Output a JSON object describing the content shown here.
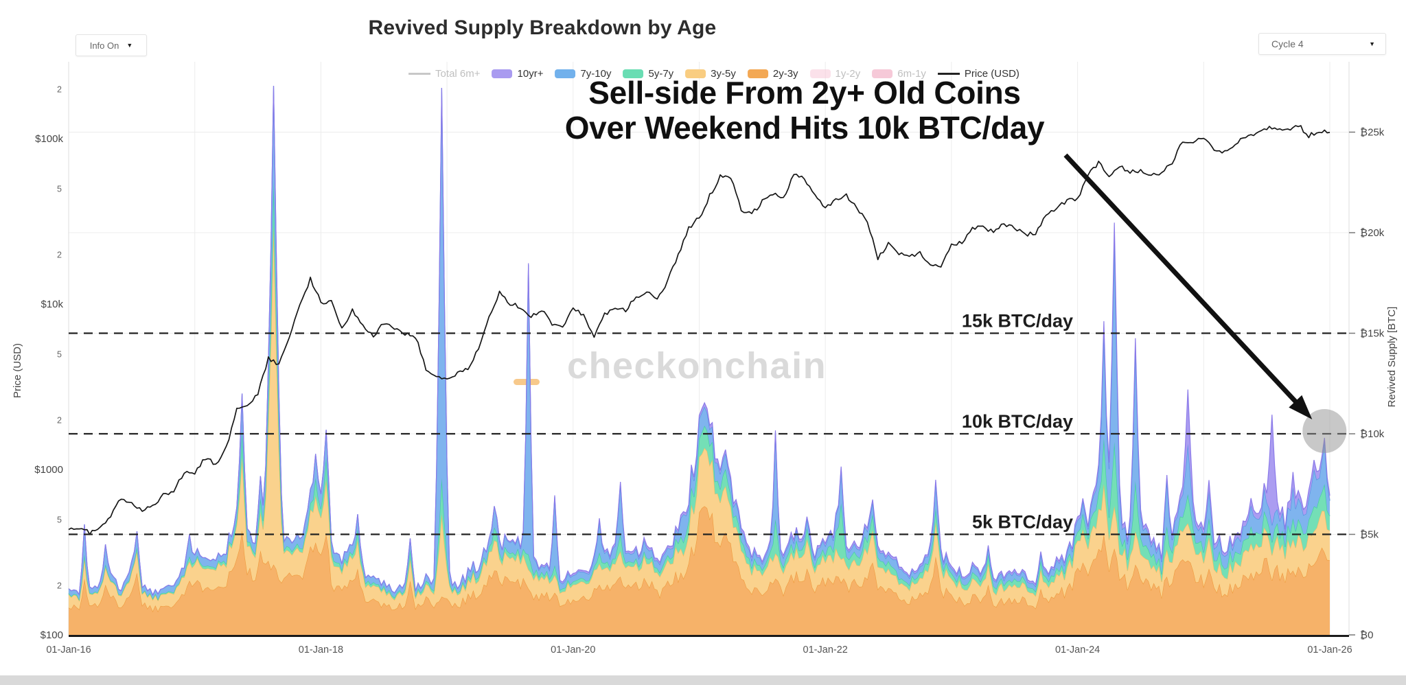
{
  "header": {
    "title": "Revived Supply Breakdown by Age"
  },
  "controls": {
    "info_dropdown": "Info On",
    "cycle_dropdown": "Cycle 4",
    "caret": "▼"
  },
  "watermark": {
    "text": "checkonchain",
    "text_color": "#dadada",
    "accent_color": "#f7c98b"
  },
  "annotation": {
    "line1": "Sell-side From 2y+ Old Coins",
    "line2": "Over Weekend Hits 10k BTC/day"
  },
  "legend": [
    {
      "label": "Total 6m+",
      "type": "line",
      "color": "#9a9a9a",
      "dimmed": true
    },
    {
      "label": "10yr+",
      "type": "swatch",
      "color": "#a99bf0",
      "dimmed": false
    },
    {
      "label": "7y-10y",
      "type": "swatch",
      "color": "#72b1ec",
      "dimmed": false
    },
    {
      "label": "5y-7y",
      "type": "swatch",
      "color": "#69ddb3",
      "dimmed": false
    },
    {
      "label": "3y-5y",
      "type": "swatch",
      "color": "#f9cd81",
      "dimmed": false
    },
    {
      "label": "2y-3y",
      "type": "swatch",
      "color": "#f3a854",
      "dimmed": false
    },
    {
      "label": "1y-2y",
      "type": "swatch",
      "color": "#f8c8d8",
      "dimmed": true
    },
    {
      "label": "6m-1y",
      "type": "swatch",
      "color": "#ef9db8",
      "dimmed": true
    },
    {
      "label": "Price (USD)",
      "type": "line",
      "color": "#222222",
      "dimmed": false
    }
  ],
  "chart_data": {
    "type": "area",
    "title": "Revived Supply Breakdown by Age",
    "stack_order": "bottom-to-top",
    "months": 121,
    "x_start": "01-Jan-2016",
    "x_end": "01-Jan-2026",
    "x_ticks": [
      {
        "label": "01-Jan-16",
        "m": 0
      },
      {
        "label": "01-Jan-18",
        "m": 24
      },
      {
        "label": "01-Jan-20",
        "m": 48
      },
      {
        "label": "01-Jan-22",
        "m": 72
      },
      {
        "label": "01-Jan-24",
        "m": 96
      },
      {
        "label": "01-Jan-26",
        "m": 120
      }
    ],
    "y_left": {
      "title": "Price (USD)",
      "scale": "log",
      "ticks": [
        {
          "label": "$100",
          "v": 100
        },
        {
          "label": "2",
          "v": 200,
          "minor": true
        },
        {
          "label": "5",
          "v": 500,
          "minor": true
        },
        {
          "label": "$1000",
          "v": 1000
        },
        {
          "label": "2",
          "v": 2000,
          "minor": true
        },
        {
          "label": "5",
          "v": 5000,
          "minor": true
        },
        {
          "label": "$10k",
          "v": 10000
        },
        {
          "label": "2",
          "v": 20000,
          "minor": true
        },
        {
          "label": "5",
          "v": 50000,
          "minor": true
        },
        {
          "label": "$100k",
          "v": 100000
        },
        {
          "label": "2",
          "v": 200000,
          "minor": true
        }
      ]
    },
    "y_right": {
      "title": "Revived Supply [BTC]",
      "scale": "linear",
      "ticks": [
        {
          "label": "₿0",
          "v": 0
        },
        {
          "label": "₿5k",
          "v": 5000
        },
        {
          "label": "₿10k",
          "v": 10000
        },
        {
          "label": "₿15k",
          "v": 15000
        },
        {
          "label": "₿20k",
          "v": 20000
        },
        {
          "label": "₿25k",
          "v": 25000
        }
      ]
    },
    "reference_lines": [
      {
        "label": "5k BTC/day",
        "value": 5000
      },
      {
        "label": "10k BTC/day",
        "value": 10000
      },
      {
        "label": "15k BTC/day",
        "value": 15000
      }
    ],
    "highlight": {
      "month_index": 119.5,
      "value": 10000,
      "description": "final weekend spike reaching 10k BTC/day"
    },
    "grid_color": "#ececec",
    "series": [
      {
        "name": "2y-3y",
        "fill": "#f6b269",
        "line": "#ee9a3d",
        "values": [
          1500,
          1250,
          1400,
          1600,
          1800,
          1500,
          2200,
          1600,
          1300,
          1450,
          1650,
          2100,
          2300,
          2600,
          2500,
          2700,
          3600,
          3100,
          2800,
          3400,
          2500,
          2700,
          3100,
          3900,
          4300,
          2700,
          2200,
          2700,
          2000,
          1700,
          1500,
          1300,
          1550,
          1300,
          1700,
          1500,
          1700,
          1500,
          1900,
          2100,
          2700,
          2900,
          2500,
          2700,
          2100,
          2000,
          1700,
          1500,
          1900,
          1700,
          2100,
          2300,
          2500,
          2100,
          2400,
          2600,
          2100,
          2400,
          2900,
          3600,
          5200,
          5400,
          4600,
          3700,
          3000,
          2400,
          2100,
          2700,
          2300,
          2800,
          2600,
          2300,
          2700,
          2900,
          2400,
          2600,
          3000,
          2600,
          2100,
          1800,
          1700,
          1900,
          2600,
          2200,
          1900,
          1600,
          1900,
          1700,
          1500,
          1700,
          1900,
          1600,
          1400,
          1700,
          2000,
          2300,
          2900,
          3100,
          3800,
          3300,
          2800,
          2500,
          2900,
          2300,
          2100,
          2600,
          3400,
          3000,
          2800,
          2400,
          2200,
          2500,
          2800,
          3000,
          3400,
          3100,
          2900,
          3200,
          3500,
          4300,
          3200
        ]
      },
      {
        "name": "3y-5y",
        "fill": "#fad28d",
        "line": "#f3bc61",
        "values": [
          600,
          480,
          550,
          640,
          740,
          600,
          880,
          640,
          520,
          580,
          660,
          850,
          950,
          1050,
          1000,
          1100,
          1500,
          1300,
          1150,
          1400,
          1050,
          1150,
          1300,
          1700,
          1950,
          1150,
          950,
          1150,
          850,
          720,
          630,
          550,
          650,
          550,
          720,
          630,
          720,
          630,
          800,
          900,
          1150,
          1250,
          1050,
          1150,
          900,
          850,
          720,
          630,
          800,
          720,
          900,
          1000,
          1050,
          900,
          1000,
          1100,
          900,
          1000,
          1250,
          1600,
          2400,
          2500,
          2100,
          1700,
          1350,
          1050,
          900,
          1150,
          1000,
          1200,
          1100,
          1000,
          1150,
          1250,
          1050,
          1100,
          1300,
          1100,
          900,
          780,
          720,
          800,
          1100,
          950,
          800,
          680,
          800,
          720,
          640,
          720,
          800,
          680,
          600,
          720,
          850,
          1000,
          1250,
          1350,
          1700,
          1450,
          1200,
          1100,
          1250,
          1000,
          900,
          1150,
          1500,
          1300,
          1200,
          1050,
          950,
          1100,
          1200,
          1300,
          1500,
          1350,
          1250,
          1400,
          1550,
          1950,
          1400
        ]
      },
      {
        "name": "5y-7y",
        "fill": "#74dfb6",
        "line": "#3ecf9e",
        "values": [
          60,
          50,
          55,
          65,
          75,
          60,
          90,
          65,
          55,
          60,
          70,
          90,
          120,
          140,
          130,
          150,
          220,
          190,
          170,
          220,
          160,
          180,
          210,
          300,
          360,
          220,
          180,
          220,
          160,
          140,
          120,
          110,
          130,
          110,
          140,
          130,
          150,
          130,
          170,
          190,
          240,
          280,
          240,
          260,
          200,
          190,
          160,
          140,
          190,
          160,
          200,
          230,
          260,
          210,
          240,
          260,
          210,
          240,
          420,
          650,
          900,
          800,
          650,
          520,
          420,
          330,
          280,
          350,
          310,
          380,
          350,
          310,
          360,
          700,
          420,
          450,
          520,
          450,
          340,
          300,
          260,
          300,
          420,
          340,
          280,
          240,
          300,
          260,
          240,
          260,
          300,
          250,
          220,
          260,
          300,
          340,
          420,
          500,
          850,
          720,
          600,
          540,
          650,
          500,
          450,
          580,
          750,
          650,
          600,
          520,
          470,
          540,
          620,
          670,
          760,
          690,
          640,
          710,
          800,
          950,
          700
        ]
      },
      {
        "name": "7y-10y",
        "fill": "#7fb4ee",
        "line": "#4e93e2",
        "values": [
          260,
          210,
          230,
          270,
          320,
          260,
          380,
          280,
          230,
          260,
          300,
          380,
          330,
          380,
          360,
          400,
          560,
          480,
          440,
          560,
          400,
          450,
          520,
          700,
          800,
          480,
          400,
          480,
          350,
          300,
          260,
          230,
          280,
          230,
          300,
          260,
          300,
          260,
          340,
          380,
          470,
          540,
          470,
          520,
          400,
          370,
          310,
          280,
          360,
          310,
          380,
          430,
          470,
          380,
          440,
          470,
          380,
          440,
          560,
          700,
          950,
          880,
          740,
          600,
          510,
          400,
          340,
          420,
          390,
          470,
          440,
          390,
          450,
          700,
          390,
          450,
          530,
          490,
          380,
          520,
          310,
          360,
          450,
          360,
          310,
          280,
          360,
          310,
          280,
          310,
          360,
          300,
          270,
          310,
          360,
          390,
          500,
          600,
          1000,
          880,
          720,
          650,
          810,
          630,
          570,
          720,
          950,
          810,
          750,
          650,
          580,
          670,
          790,
          850,
          960,
          870,
          810,
          900,
          1000,
          1200,
          870
        ]
      },
      {
        "name": "10yr+",
        "fill": "#ab9df1",
        "line": "#8b7ae9",
        "values": [
          0,
          0,
          0,
          0,
          0,
          0,
          0,
          0,
          0,
          0,
          0,
          0,
          0,
          0,
          0,
          0,
          0,
          0,
          0,
          0,
          0,
          0,
          0,
          0,
          0,
          0,
          0,
          0,
          0,
          0,
          0,
          0,
          0,
          0,
          0,
          0,
          0,
          0,
          0,
          0,
          0,
          0,
          50,
          70,
          70,
          80,
          80,
          90,
          90,
          90,
          100,
          100,
          110,
          100,
          110,
          120,
          110,
          120,
          140,
          160,
          190,
          200,
          180,
          150,
          140,
          120,
          110,
          130,
          120,
          140,
          130,
          120,
          130,
          120,
          110,
          120,
          140,
          130,
          110,
          100,
          90,
          100,
          130,
          110,
          100,
          90,
          110,
          100,
          90,
          100,
          110,
          100,
          90,
          100,
          110,
          120,
          140,
          160,
          260,
          220,
          200,
          180,
          210,
          180,
          160,
          200,
          280,
          240,
          230,
          200,
          180,
          200,
          240,
          260,
          310,
          280,
          260,
          300,
          340,
          400,
          290
        ]
      }
    ],
    "price": {
      "name": "Price (USD)",
      "color": "#161616",
      "values": [
        430,
        437,
        416,
        450,
        530,
        670,
        625,
        575,
        610,
        700,
        745,
        960,
        965,
        1180,
        1080,
        1350,
        2300,
        2450,
        2870,
        4700,
        4350,
        6450,
        9900,
        14200,
        10200,
        10500,
        7000,
        9200,
        7500,
        6400,
        7700,
        7000,
        6600,
        6400,
        4000,
        3700,
        3450,
        3850,
        4100,
        5300,
        8500,
        11800,
        10100,
        9600,
        8300,
        9200,
        7500,
        7200,
        9350,
        8600,
        6450,
        8650,
        9450,
        9140,
        11100,
        11700,
        10800,
        13800,
        19700,
        29000,
        33100,
        45200,
        58800,
        57800,
        37300,
        35000,
        41500,
        47100,
        43800,
        61300,
        57000,
        46200,
        38500,
        43200,
        45500,
        37700,
        31800,
        19000,
        23300,
        20000,
        19400,
        20500,
        17100,
        16500,
        23100,
        23500,
        28500,
        29200,
        27200,
        30500,
        29200,
        26000,
        27000,
        34700,
        37700,
        42300,
        42600,
        61200,
        71300,
        60600,
        67500,
        62700,
        64600,
        59000,
        63300,
        70200,
        96400,
        93400,
        102000,
        84400,
        82500,
        94200,
        104000,
        107000,
        116000,
        113000,
        114000,
        121000,
        104000,
        112000,
        109000
      ]
    },
    "spikes": [
      [
        1.5,
        0.55,
        2800,
        1000,
        200,
        1500,
        0
      ],
      [
        3.5,
        0.55,
        2500,
        850,
        150,
        1000,
        0
      ],
      [
        6.5,
        0.55,
        3100,
        1050,
        200,
        800,
        0
      ],
      [
        11.5,
        0.55,
        2700,
        950,
        250,
        1100,
        0
      ],
      [
        16.5,
        0.6,
        5200,
        3600,
        1300,
        1900,
        0
      ],
      [
        18.25,
        0.55,
        4200,
        1900,
        700,
        1100,
        0
      ],
      [
        19.5,
        1.0,
        3500,
        16800,
        2300,
        4700,
        0
      ],
      [
        23.5,
        0.6,
        4600,
        2300,
        900,
        1200,
        0
      ],
      [
        24.5,
        0.6,
        5000,
        2700,
        1100,
        1400,
        0
      ],
      [
        27.5,
        0.55,
        3300,
        1400,
        550,
        750,
        0
      ],
      [
        32.5,
        0.55,
        2700,
        1050,
        450,
        600,
        0
      ],
      [
        35.5,
        0.8,
        1900,
        4100,
        1800,
        19400,
        0
      ],
      [
        40.5,
        0.55,
        3200,
        1500,
        650,
        1050,
        0
      ],
      [
        43.75,
        0.55,
        2300,
        950,
        750,
        14400,
        80
      ],
      [
        46.25,
        0.55,
        2100,
        880,
        480,
        3400,
        80
      ],
      [
        50.5,
        0.55,
        2500,
        1050,
        550,
        1600,
        100
      ],
      [
        52.5,
        0.6,
        2900,
        1250,
        850,
        2500,
        110
      ],
      [
        58.5,
        0.55,
        2800,
        1150,
        650,
        1400,
        130
      ],
      [
        60.5,
        1.2,
        6400,
        2900,
        1100,
        950,
        190
      ],
      [
        62.5,
        1.0,
        5100,
        2300,
        850,
        780,
        180
      ],
      [
        67.25,
        0.5,
        2800,
        1250,
        1700,
        4300,
        120
      ],
      [
        70.25,
        0.55,
        3300,
        1450,
        550,
        450,
        130
      ],
      [
        73.5,
        0.5,
        2600,
        1150,
        2800,
        1700,
        120
      ],
      [
        76.5,
        0.55,
        3600,
        1600,
        800,
        600,
        130
      ],
      [
        82.5,
        0.6,
        3900,
        1700,
        700,
        1300,
        110
      ],
      [
        87.5,
        0.55,
        2500,
        1050,
        450,
        350,
        100
      ],
      [
        92.5,
        0.55,
        2300,
        950,
        450,
        350,
        95
      ],
      [
        96.5,
        0.6,
        3600,
        1650,
        800,
        600,
        140
      ],
      [
        98.5,
        0.6,
        5000,
        2500,
        2300,
        5300,
        500
      ],
      [
        99.5,
        0.7,
        4300,
        2100,
        3200,
        10200,
        700
      ],
      [
        101.5,
        0.6,
        3500,
        1650,
        2500,
        6700,
        400
      ],
      [
        104.5,
        0.55,
        2900,
        1350,
        1150,
        2300,
        250
      ],
      [
        106.5,
        0.6,
        3700,
        1850,
        1450,
        2500,
        2700
      ],
      [
        108.5,
        0.55,
        3300,
        1550,
        950,
        1350,
        550
      ],
      [
        112.5,
        0.55,
        3100,
        1450,
        850,
        1050,
        350
      ],
      [
        114.5,
        0.55,
        2700,
        1250,
        650,
        850,
        5500
      ],
      [
        116.5,
        0.55,
        3200,
        1550,
        1050,
        1550,
        750
      ],
      [
        118.5,
        0.55,
        3500,
        1650,
        1250,
        1850,
        450
      ],
      [
        119.5,
        0.45,
        4100,
        2050,
        1350,
        2150,
        150
      ]
    ]
  }
}
